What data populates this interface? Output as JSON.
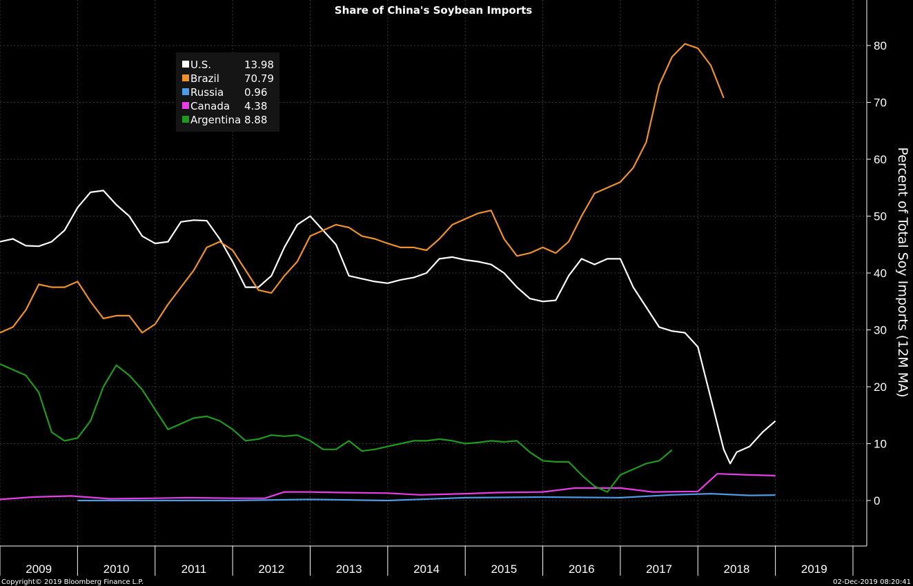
{
  "chart_data": {
    "type": "line",
    "title": "Share of China's Soybean Imports",
    "ylabel": "Percent of Total Soy Imports (12M MA)",
    "ylim": [
      -8,
      88
    ],
    "yticks": [
      0,
      10,
      20,
      30,
      40,
      50,
      60,
      70,
      80
    ],
    "grid": true,
    "legend_position": "top-left",
    "x_years": [
      "2009",
      "2010",
      "2011",
      "2012",
      "2013",
      "2014",
      "2015",
      "2016",
      "2017",
      "2018",
      "2019"
    ],
    "series": [
      {
        "name": "U.S.",
        "last_value": "13.98",
        "color": "#ffffff",
        "points": [
          [
            "2009-01",
            45.5
          ],
          [
            "2009-03",
            46.0
          ],
          [
            "2009-05",
            44.8
          ],
          [
            "2009-07",
            44.7
          ],
          [
            "2009-09",
            45.5
          ],
          [
            "2009-11",
            47.5
          ],
          [
            "2010-01",
            51.5
          ],
          [
            "2010-03",
            54.2
          ],
          [
            "2010-05",
            54.5
          ],
          [
            "2010-07",
            52.0
          ],
          [
            "2010-09",
            50.0
          ],
          [
            "2010-11",
            46.5
          ],
          [
            "2011-01",
            45.2
          ],
          [
            "2011-03",
            45.5
          ],
          [
            "2011-05",
            49.0
          ],
          [
            "2011-07",
            49.3
          ],
          [
            "2011-09",
            49.2
          ],
          [
            "2011-11",
            46.0
          ],
          [
            "2012-01",
            42.0
          ],
          [
            "2012-03",
            37.5
          ],
          [
            "2012-05",
            37.5
          ],
          [
            "2012-07",
            39.5
          ],
          [
            "2012-09",
            44.5
          ],
          [
            "2012-11",
            48.5
          ],
          [
            "2013-01",
            50.0
          ],
          [
            "2013-03",
            47.5
          ],
          [
            "2013-05",
            45.0
          ],
          [
            "2013-07",
            39.5
          ],
          [
            "2013-09",
            39.0
          ],
          [
            "2013-11",
            38.5
          ],
          [
            "2014-01",
            38.2
          ],
          [
            "2014-03",
            38.8
          ],
          [
            "2014-05",
            39.2
          ],
          [
            "2014-07",
            40.0
          ],
          [
            "2014-09",
            42.5
          ],
          [
            "2014-11",
            42.8
          ],
          [
            "2015-01",
            42.3
          ],
          [
            "2015-03",
            42.0
          ],
          [
            "2015-05",
            41.5
          ],
          [
            "2015-07",
            40.0
          ],
          [
            "2015-09",
            37.5
          ],
          [
            "2015-11",
            35.5
          ],
          [
            "2016-01",
            35.0
          ],
          [
            "2016-03",
            35.2
          ],
          [
            "2016-05",
            39.5
          ],
          [
            "2016-07",
            42.5
          ],
          [
            "2016-09",
            41.5
          ],
          [
            "2016-11",
            42.5
          ],
          [
            "2017-01",
            42.5
          ],
          [
            "2017-03",
            37.5
          ],
          [
            "2017-05",
            34.0
          ],
          [
            "2017-07",
            30.5
          ],
          [
            "2017-09",
            29.8
          ],
          [
            "2017-11",
            29.5
          ],
          [
            "2018-01",
            27.0
          ],
          [
            "2018-03",
            18.0
          ],
          [
            "2018-05",
            9.0
          ],
          [
            "2018-06",
            6.5
          ],
          [
            "2018-07",
            8.5
          ],
          [
            "2018-09",
            9.5
          ],
          [
            "2018-11",
            12.0
          ],
          [
            "2019-01",
            13.98
          ]
        ]
      },
      {
        "name": "Brazil",
        "last_value": "70.79",
        "color": "#f0922c",
        "points": [
          [
            "2009-01",
            29.5
          ],
          [
            "2009-03",
            30.5
          ],
          [
            "2009-05",
            33.5
          ],
          [
            "2009-07",
            38.0
          ],
          [
            "2009-09",
            37.5
          ],
          [
            "2009-11",
            37.5
          ],
          [
            "2010-01",
            38.5
          ],
          [
            "2010-03",
            35.0
          ],
          [
            "2010-05",
            32.0
          ],
          [
            "2010-07",
            32.5
          ],
          [
            "2010-09",
            32.5
          ],
          [
            "2010-11",
            29.5
          ],
          [
            "2011-01",
            31.0
          ],
          [
            "2011-03",
            34.5
          ],
          [
            "2011-05",
            37.5
          ],
          [
            "2011-07",
            40.5
          ],
          [
            "2011-09",
            44.5
          ],
          [
            "2011-11",
            45.5
          ],
          [
            "2012-01",
            44.0
          ],
          [
            "2012-03",
            40.5
          ],
          [
            "2012-05",
            37.0
          ],
          [
            "2012-07",
            36.5
          ],
          [
            "2012-09",
            39.5
          ],
          [
            "2012-11",
            42.0
          ],
          [
            "2013-01",
            46.5
          ],
          [
            "2013-03",
            47.5
          ],
          [
            "2013-05",
            48.5
          ],
          [
            "2013-07",
            48.0
          ],
          [
            "2013-09",
            46.5
          ],
          [
            "2013-11",
            46.0
          ],
          [
            "2014-01",
            45.2
          ],
          [
            "2014-03",
            44.5
          ],
          [
            "2014-05",
            44.5
          ],
          [
            "2014-07",
            44.0
          ],
          [
            "2014-09",
            46.0
          ],
          [
            "2014-11",
            48.5
          ],
          [
            "2015-01",
            49.5
          ],
          [
            "2015-03",
            50.5
          ],
          [
            "2015-05",
            51.0
          ],
          [
            "2015-07",
            46.0
          ],
          [
            "2015-09",
            43.0
          ],
          [
            "2015-11",
            43.5
          ],
          [
            "2016-01",
            44.5
          ],
          [
            "2016-03",
            43.5
          ],
          [
            "2016-05",
            45.5
          ],
          [
            "2016-07",
            50.0
          ],
          [
            "2016-09",
            54.0
          ],
          [
            "2016-11",
            55.0
          ],
          [
            "2017-01",
            56.0
          ],
          [
            "2017-03",
            58.5
          ],
          [
            "2017-05",
            63.0
          ],
          [
            "2017-07",
            73.0
          ],
          [
            "2017-09",
            78.0
          ],
          [
            "2017-11",
            80.3
          ],
          [
            "2018-01",
            79.5
          ],
          [
            "2018-03",
            76.5
          ],
          [
            "2018-05",
            70.79
          ]
        ]
      },
      {
        "name": "Russia",
        "last_value": "0.96",
        "color": "#4e9be6",
        "points": [
          [
            "2010-01",
            0.0
          ],
          [
            "2011-01",
            0.0
          ],
          [
            "2012-01",
            0.0
          ],
          [
            "2013-01",
            0.2
          ],
          [
            "2014-01",
            0.0
          ],
          [
            "2015-01",
            0.5
          ],
          [
            "2016-01",
            0.6
          ],
          [
            "2017-01",
            0.5
          ],
          [
            "2017-09",
            1.0
          ],
          [
            "2018-03",
            1.2
          ],
          [
            "2018-09",
            0.9
          ],
          [
            "2019-01",
            0.96
          ]
        ]
      },
      {
        "name": "Canada",
        "last_value": "4.38",
        "color": "#e83ee8",
        "points": [
          [
            "2009-01",
            0.2
          ],
          [
            "2009-06",
            0.6
          ],
          [
            "2009-12",
            0.8
          ],
          [
            "2010-06",
            0.3
          ],
          [
            "2011-01",
            0.4
          ],
          [
            "2011-06",
            0.5
          ],
          [
            "2012-01",
            0.4
          ],
          [
            "2012-06",
            0.4
          ],
          [
            "2012-09",
            1.5
          ],
          [
            "2013-01",
            1.5
          ],
          [
            "2013-06",
            1.4
          ],
          [
            "2014-01",
            1.3
          ],
          [
            "2014-06",
            1.0
          ],
          [
            "2015-01",
            1.2
          ],
          [
            "2015-06",
            1.4
          ],
          [
            "2016-01",
            1.5
          ],
          [
            "2016-06",
            2.2
          ],
          [
            "2017-01",
            2.2
          ],
          [
            "2017-06",
            1.5
          ],
          [
            "2018-01",
            1.6
          ],
          [
            "2018-04",
            4.7
          ],
          [
            "2018-09",
            4.5
          ],
          [
            "2019-01",
            4.38
          ]
        ]
      },
      {
        "name": "Argentina",
        "last_value": "8.88",
        "color": "#1f9a1f",
        "points": [
          [
            "2009-01",
            24.0
          ],
          [
            "2009-03",
            23.0
          ],
          [
            "2009-05",
            22.0
          ],
          [
            "2009-07",
            19.0
          ],
          [
            "2009-09",
            12.0
          ],
          [
            "2009-11",
            10.5
          ],
          [
            "2010-01",
            11.0
          ],
          [
            "2010-03",
            14.0
          ],
          [
            "2010-05",
            20.0
          ],
          [
            "2010-07",
            23.8
          ],
          [
            "2010-09",
            22.0
          ],
          [
            "2010-11",
            19.5
          ],
          [
            "2011-01",
            16.0
          ],
          [
            "2011-03",
            12.5
          ],
          [
            "2011-05",
            13.5
          ],
          [
            "2011-07",
            14.5
          ],
          [
            "2011-09",
            14.8
          ],
          [
            "2011-11",
            14.0
          ],
          [
            "2012-01",
            12.5
          ],
          [
            "2012-03",
            10.5
          ],
          [
            "2012-05",
            10.8
          ],
          [
            "2012-07",
            11.5
          ],
          [
            "2012-09",
            11.3
          ],
          [
            "2012-11",
            11.5
          ],
          [
            "2013-01",
            10.5
          ],
          [
            "2013-03",
            9.0
          ],
          [
            "2013-05",
            9.0
          ],
          [
            "2013-07",
            10.5
          ],
          [
            "2013-09",
            8.7
          ],
          [
            "2013-11",
            9.0
          ],
          [
            "2014-01",
            9.5
          ],
          [
            "2014-03",
            10.0
          ],
          [
            "2014-05",
            10.5
          ],
          [
            "2014-07",
            10.5
          ],
          [
            "2014-09",
            10.8
          ],
          [
            "2014-11",
            10.5
          ],
          [
            "2015-01",
            10.0
          ],
          [
            "2015-03",
            10.2
          ],
          [
            "2015-05",
            10.5
          ],
          [
            "2015-07",
            10.3
          ],
          [
            "2015-09",
            10.5
          ],
          [
            "2015-11",
            8.5
          ],
          [
            "2016-01",
            7.0
          ],
          [
            "2016-03",
            6.8
          ],
          [
            "2016-05",
            6.8
          ],
          [
            "2016-07",
            4.5
          ],
          [
            "2016-09",
            2.5
          ],
          [
            "2016-11",
            1.5
          ],
          [
            "2017-01",
            4.5
          ],
          [
            "2017-03",
            5.5
          ],
          [
            "2017-05",
            6.5
          ],
          [
            "2017-07",
            7.0
          ],
          [
            "2017-09",
            8.88
          ]
        ]
      }
    ]
  },
  "footer": {
    "copyright": "Copyright© 2019 Bloomberg Finance L.P.",
    "timestamp": "02-Dec-2019 08:20:41"
  }
}
